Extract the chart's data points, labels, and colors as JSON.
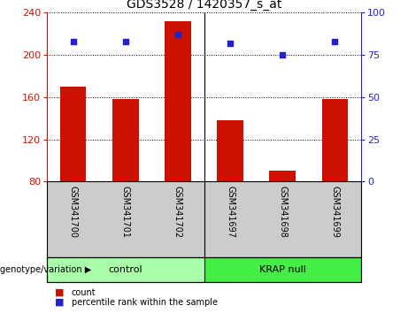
{
  "title": "GDS3528 / 1420357_s_at",
  "categories": [
    "GSM341700",
    "GSM341701",
    "GSM341702",
    "GSM341697",
    "GSM341698",
    "GSM341699"
  ],
  "bar_values": [
    170,
    158,
    232,
    138,
    90,
    158
  ],
  "percentile_values": [
    83,
    83,
    87,
    82,
    75,
    83
  ],
  "ylim_left": [
    80,
    240
  ],
  "ylim_right": [
    0,
    100
  ],
  "yticks_left": [
    80,
    120,
    160,
    200,
    240
  ],
  "yticks_right": [
    0,
    25,
    50,
    75,
    100
  ],
  "bar_color": "#cc1100",
  "dot_color": "#2222cc",
  "plot_bg_color": "#ffffff",
  "tick_label_area_color": "#cccccc",
  "group_area_color_control": "#aaffaa",
  "group_area_color_krap": "#44ee44",
  "bar_width": 0.5,
  "legend_items": [
    {
      "label": "count",
      "color": "#cc1100"
    },
    {
      "label": "percentile rank within the sample",
      "color": "#2222cc"
    }
  ]
}
